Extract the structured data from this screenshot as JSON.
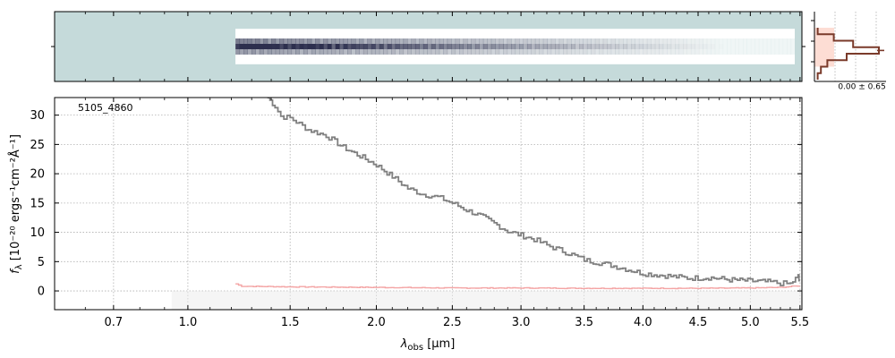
{
  "chart_data": [
    {
      "type": "heatmap",
      "description_label": "2D spectrum",
      "background_color": "#c5dada",
      "trace_color": "#2d2f4e",
      "x_domain_um": [
        0.5,
        5.52
      ],
      "coverage_start_um": 1.22,
      "rows": 5,
      "y_ticks": [
        0
      ]
    },
    {
      "type": "line",
      "title_label": "5105_4860",
      "xlabel_text": "λ",
      "xlabel_sub": "obs",
      "xlabel_unit": " [μm]",
      "ylabel_text": "f",
      "ylabel_sub": "λ",
      "ylabel_unit": " [10⁻²⁰ ergs⁻¹cm⁻²Å⁻¹]",
      "x_scale": "sqrt",
      "xlim": [
        0.5,
        5.52
      ],
      "ylim": [
        -3.2,
        33
      ],
      "x_tick_values": [
        0.7,
        1.0,
        1.5,
        2.0,
        2.5,
        3.0,
        3.5,
        4.0,
        4.5,
        5.0,
        5.5
      ],
      "x_tick_labels": [
        "0.7",
        "1.0",
        "1.5",
        "2.0",
        "2.5",
        "3.0",
        "3.5",
        "4.0",
        "4.5",
        "5.0",
        "5.5"
      ],
      "y_tick_values": [
        0,
        5,
        10,
        15,
        20,
        25,
        30
      ],
      "y_tick_labels": [
        "0",
        "5",
        "10",
        "15",
        "20",
        "25",
        "30"
      ],
      "grid": true,
      "series": [
        {
          "role": "flux",
          "color": "#808080",
          "style": "steps",
          "x": [
            1.38,
            1.42,
            1.45,
            1.5,
            1.55,
            1.6,
            1.7,
            1.8,
            1.9,
            2.0,
            2.1,
            2.2,
            2.3,
            2.4,
            2.5,
            2.6,
            2.7,
            2.8,
            2.9,
            3.0,
            3.1,
            3.2,
            3.3,
            3.4,
            3.5,
            3.6,
            3.7,
            3.8,
            3.9,
            4.0,
            4.1,
            4.2,
            4.3,
            4.4,
            4.5,
            4.6,
            4.7,
            4.8,
            4.9,
            5.0,
            5.1,
            5.2,
            5.3,
            5.4,
            5.48,
            5.5
          ],
          "y": [
            33.0,
            31.5,
            29.8,
            29.5,
            28.5,
            27.5,
            26.5,
            24.5,
            23.0,
            21.5,
            19.5,
            17.5,
            16.5,
            16.0,
            15.0,
            13.8,
            12.8,
            11.5,
            10.2,
            9.5,
            8.8,
            7.8,
            7.0,
            6.2,
            5.3,
            4.9,
            4.5,
            4.0,
            3.5,
            3.0,
            2.8,
            2.6,
            2.4,
            2.2,
            2.2,
            2.3,
            2.1,
            1.9,
            1.8,
            1.7,
            1.6,
            1.5,
            1.3,
            1.2,
            2.5,
            1.0
          ]
        },
        {
          "role": "error",
          "color": "#f4a4a4",
          "style": "steps",
          "x": [
            1.22,
            1.25,
            1.5,
            2.0,
            2.5,
            3.0,
            3.5,
            4.0,
            4.5,
            5.0,
            5.3,
            5.5
          ],
          "y": [
            1.2,
            0.8,
            0.7,
            0.6,
            0.5,
            0.5,
            0.45,
            0.45,
            0.45,
            0.5,
            0.6,
            0.9
          ]
        }
      ],
      "shaded_region_x": [
        0.93,
        5.52
      ],
      "shaded_region_y": [
        -3.2,
        0
      ]
    },
    {
      "type": "bar",
      "description_label": "spatial profile",
      "annotation": "0.00 ± 0.65",
      "profile_color": "#7a3a2a",
      "fill_color": "#fdd7cc",
      "profile_values": [
        0.05,
        0.3,
        0.6,
        1.0,
        0.5,
        0.2,
        0.1,
        0.05
      ]
    }
  ]
}
